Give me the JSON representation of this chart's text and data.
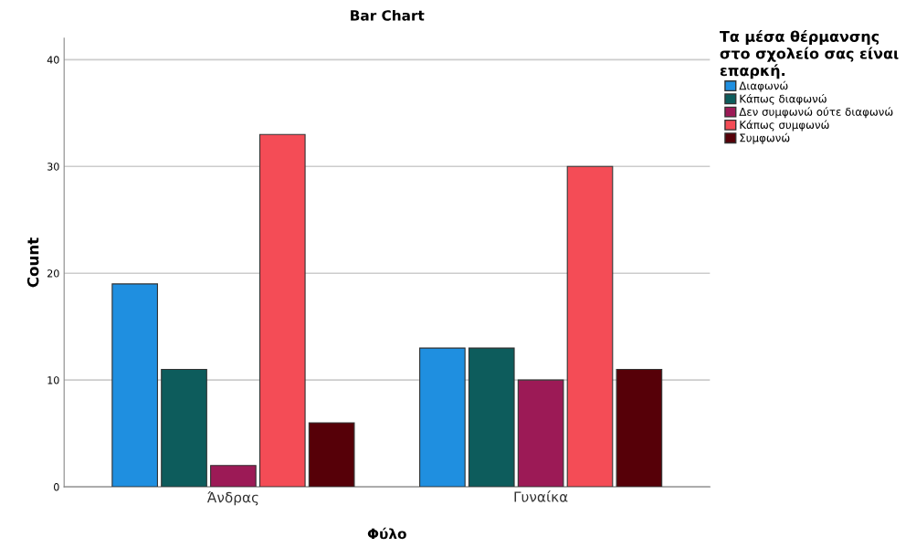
{
  "chart_data": {
    "type": "bar",
    "title": "Bar Chart",
    "xlabel": "Φύλο",
    "ylabel": "Count",
    "legend_title": "Τα μέσα θέρμανσης\nστο σχολείο σας είναι\nεπαρκή.",
    "categories": [
      "Άνδρας",
      "Γυναίκα"
    ],
    "series": [
      {
        "name": "Διαφωνώ",
        "color": "#1f8fe0",
        "values": [
          19,
          13
        ]
      },
      {
        "name": "Κάπως διαφωνώ",
        "color": "#0d5c5c",
        "values": [
          11,
          13
        ]
      },
      {
        "name": "Δεν συμφωνώ ούτε διαφωνώ",
        "color": "#9c1a56",
        "values": [
          2,
          10
        ]
      },
      {
        "name": "Κάπως συμφωνώ",
        "color": "#f44c56",
        "values": [
          33,
          30
        ]
      },
      {
        "name": "Συμφωνώ",
        "color": "#560008",
        "values": [
          6,
          11
        ]
      }
    ],
    "ylim": [
      0,
      42
    ],
    "yticks": [
      0,
      10,
      20,
      30,
      40
    ],
    "grid": "y",
    "legend": "top right"
  }
}
